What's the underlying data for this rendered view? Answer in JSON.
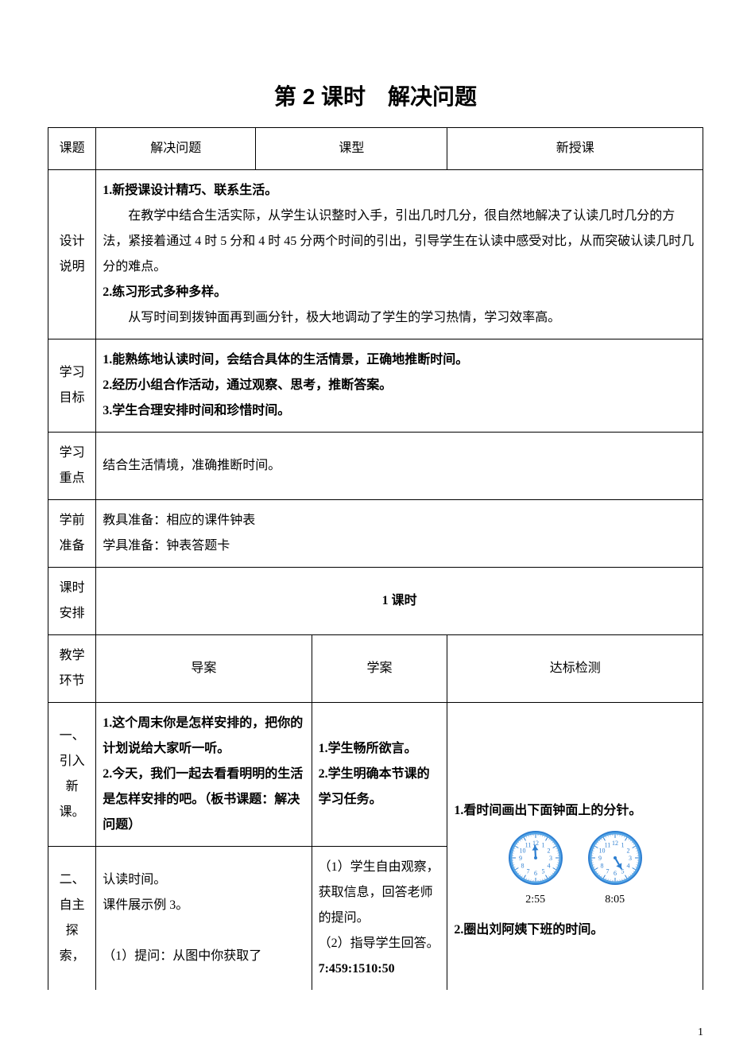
{
  "title": "第 2 课时　解决问题",
  "header": {
    "topic_label": "课题",
    "topic_value": "解决问题",
    "type_label": "课型",
    "type_value": "新授课"
  },
  "design": {
    "label": "设计说明",
    "p1": "1.新授课设计精巧、联系生活。",
    "p2": "在教学中结合生活实际，从学生认识整时入手，引出几时几分，很自然地解决了认读几时几分的方法，紧接着通过 4 时 5 分和 4 时 45 分两个时间的引出，引导学生在认读中感受对比，从而突破认读几时几分的难点。",
    "p3": "2.练习形式多种多样。",
    "p4": "从写时间到拨钟面再到画分针，极大地调动了学生的学习热情，学习效率高。"
  },
  "goals": {
    "label": "学习目标",
    "l1": "1.能熟练地认读时间，会结合具体的生活情景，正确地推断时间。",
    "l2": "2.经历小组合作活动，通过观察、思考，推断答案。",
    "l3": "3.学生合理安排时间和珍惜时间。"
  },
  "focus": {
    "label": "学习重点",
    "text": "结合生活情境，准确推断时间。"
  },
  "prep": {
    "label": "学前准备",
    "l1": "教具准备：相应的课件钟表",
    "l2": "学具准备：钟表答题卡"
  },
  "sched": {
    "label": "课时安排",
    "text": "1 课时"
  },
  "env_header": {
    "label": "教学环节",
    "col1": "导案",
    "col2": "学案",
    "col3": "达标检测"
  },
  "sec1": {
    "label": "一、引入新课。",
    "guide": "1.这个周末你是怎样安排的，把你的计划说给大家听一听。\n2.今天，我们一起去看看明明的生活是怎样安排的吧。（板书课题：解决问题）",
    "study": "1.学生畅所欲言。\n2.学生明确本节课的学习任务。"
  },
  "sec2": {
    "label": "二、自主探索，",
    "guide_a": "认读时间。",
    "guide_b": "课件展示例 3。",
    "guide_c": "（1）提问：从图中你获取了",
    "study_a": "（1）学生自由观察，获取信息，回答老师的提问。",
    "study_b": "（2）指导学生回答。",
    "study_c": "7:459:1510:50"
  },
  "check": {
    "q1": "1.看时间画出下面钟面上的分针。",
    "q2": "2.圈出刘阿姨下班的时间。",
    "clock1_label": "2:55",
    "clock2_label": "8:05"
  },
  "clock_style": {
    "size": 70,
    "rim_outer": "#2e7fd1",
    "rim_inner": "#56a8e8",
    "face": "#ffffff",
    "hand": "#2e7fd1",
    "num_color": "#2e7fd1",
    "clock1_hour_angle": -3,
    "clock2_hour_angle": 150
  },
  "page_number": "1"
}
